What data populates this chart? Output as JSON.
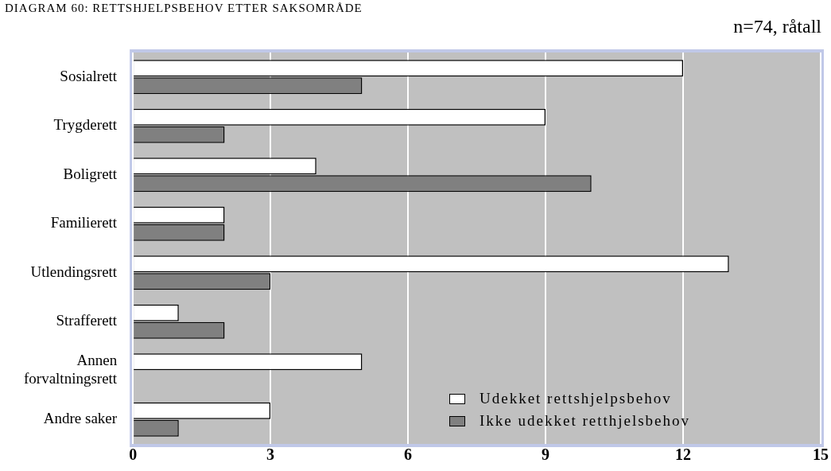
{
  "chart_data": {
    "type": "bar",
    "orientation": "horizontal",
    "title": "DIAGRAM 60: RETTSHJELPSBEHOV ETTER SAKSOMRÅDE",
    "subtitle": "n=74, råtall",
    "categories": [
      "Sosialrett",
      "Trygderett",
      "Boligrett",
      "Familierett",
      "Utlendingsrett",
      "Strafferett",
      "Annen forvaltningsrett",
      "Andre saker"
    ],
    "series": [
      {
        "name": "Udekket rettshjelpsbehov",
        "color": "#ffffff",
        "values": [
          12,
          9,
          4,
          2,
          13,
          1,
          5,
          3
        ]
      },
      {
        "name": "Ikke udekket retthjelsbehov",
        "color": "#808080",
        "values": [
          5,
          2,
          10,
          2,
          3,
          2,
          0,
          1
        ]
      }
    ],
    "xlim": [
      0,
      15
    ],
    "xticks": [
      0,
      3,
      6,
      9,
      12,
      15
    ],
    "grid": "x",
    "legend": "bottom right"
  }
}
